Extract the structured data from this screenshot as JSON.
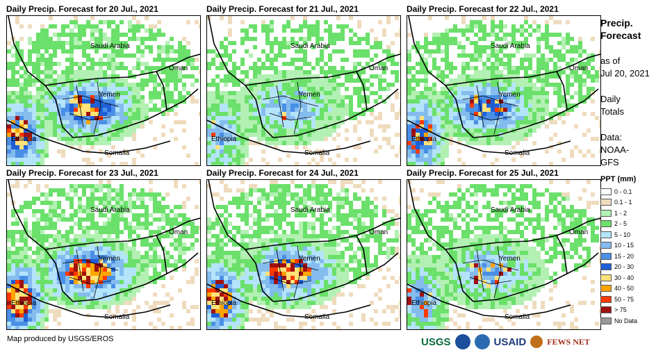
{
  "panels": [
    {
      "title": "Daily Precip. Forecast for 20 Jul., 2021",
      "intensity": 0.9,
      "heavy": 0.35,
      "dry": 0.25
    },
    {
      "title": "Daily Precip. Forecast for 21 Jul., 2021",
      "intensity": 0.55,
      "heavy": 0.05,
      "dry": 0.35
    },
    {
      "title": "Daily Precip. Forecast for 22 Jul., 2021",
      "intensity": 0.8,
      "heavy": 0.4,
      "dry": 0.3
    },
    {
      "title": "Daily Precip. Forecast for 23 Jul., 2021",
      "intensity": 1.0,
      "heavy": 0.9,
      "dry": 0.3
    },
    {
      "title": "Daily Precip. Forecast for 24 Jul., 2021",
      "intensity": 0.9,
      "heavy": 0.85,
      "dry": 0.45
    },
    {
      "title": "Daily Precip. Forecast for 25 Jul., 2021",
      "intensity": 0.6,
      "heavy": 0.25,
      "dry": 0.35
    }
  ],
  "map_labels": {
    "saudi": "Saudi Arabia",
    "oman": "Oman",
    "yemen": "Yemen",
    "ethiopia": "Ethiopia",
    "somalia": "Somalia"
  },
  "info": {
    "title_line1": "Precip.",
    "title_line2": "Forecast",
    "asof_line1": "as of",
    "asof_line2": "Jul 20, 2021",
    "totals_line1": "Daily",
    "totals_line2": "Totals",
    "data_line1": "Data:",
    "data_line2": "NOAA-",
    "data_line3": "GFS"
  },
  "legend": {
    "title": "PPT (mm)",
    "items": [
      {
        "label": "0 - 0.1",
        "color": "#ffffff"
      },
      {
        "label": "0.1 - 1",
        "color": "#efdcbe"
      },
      {
        "label": "1 - 2",
        "color": "#b3f0b3"
      },
      {
        "label": "2 - 5",
        "color": "#6be06b"
      },
      {
        "label": "5 - 10",
        "color": "#b4e4fa"
      },
      {
        "label": "10 - 15",
        "color": "#84bcee"
      },
      {
        "label": "15 - 20",
        "color": "#4a8fe6"
      },
      {
        "label": "20 - 30",
        "color": "#1f5fd6"
      },
      {
        "label": "30 - 40",
        "color": "#ffe37a"
      },
      {
        "label": "40 - 50",
        "color": "#ffa500"
      },
      {
        "label": "50 - 75",
        "color": "#ff3a00"
      },
      {
        "label": "> 75",
        "color": "#a01010"
      },
      {
        "label": "No Data",
        "color": "#999999"
      }
    ]
  },
  "credit": "Map produced by USGS/EROS",
  "logos": {
    "usgs": "USGS",
    "usaid": "USAID",
    "fews": "FEWS NET"
  }
}
